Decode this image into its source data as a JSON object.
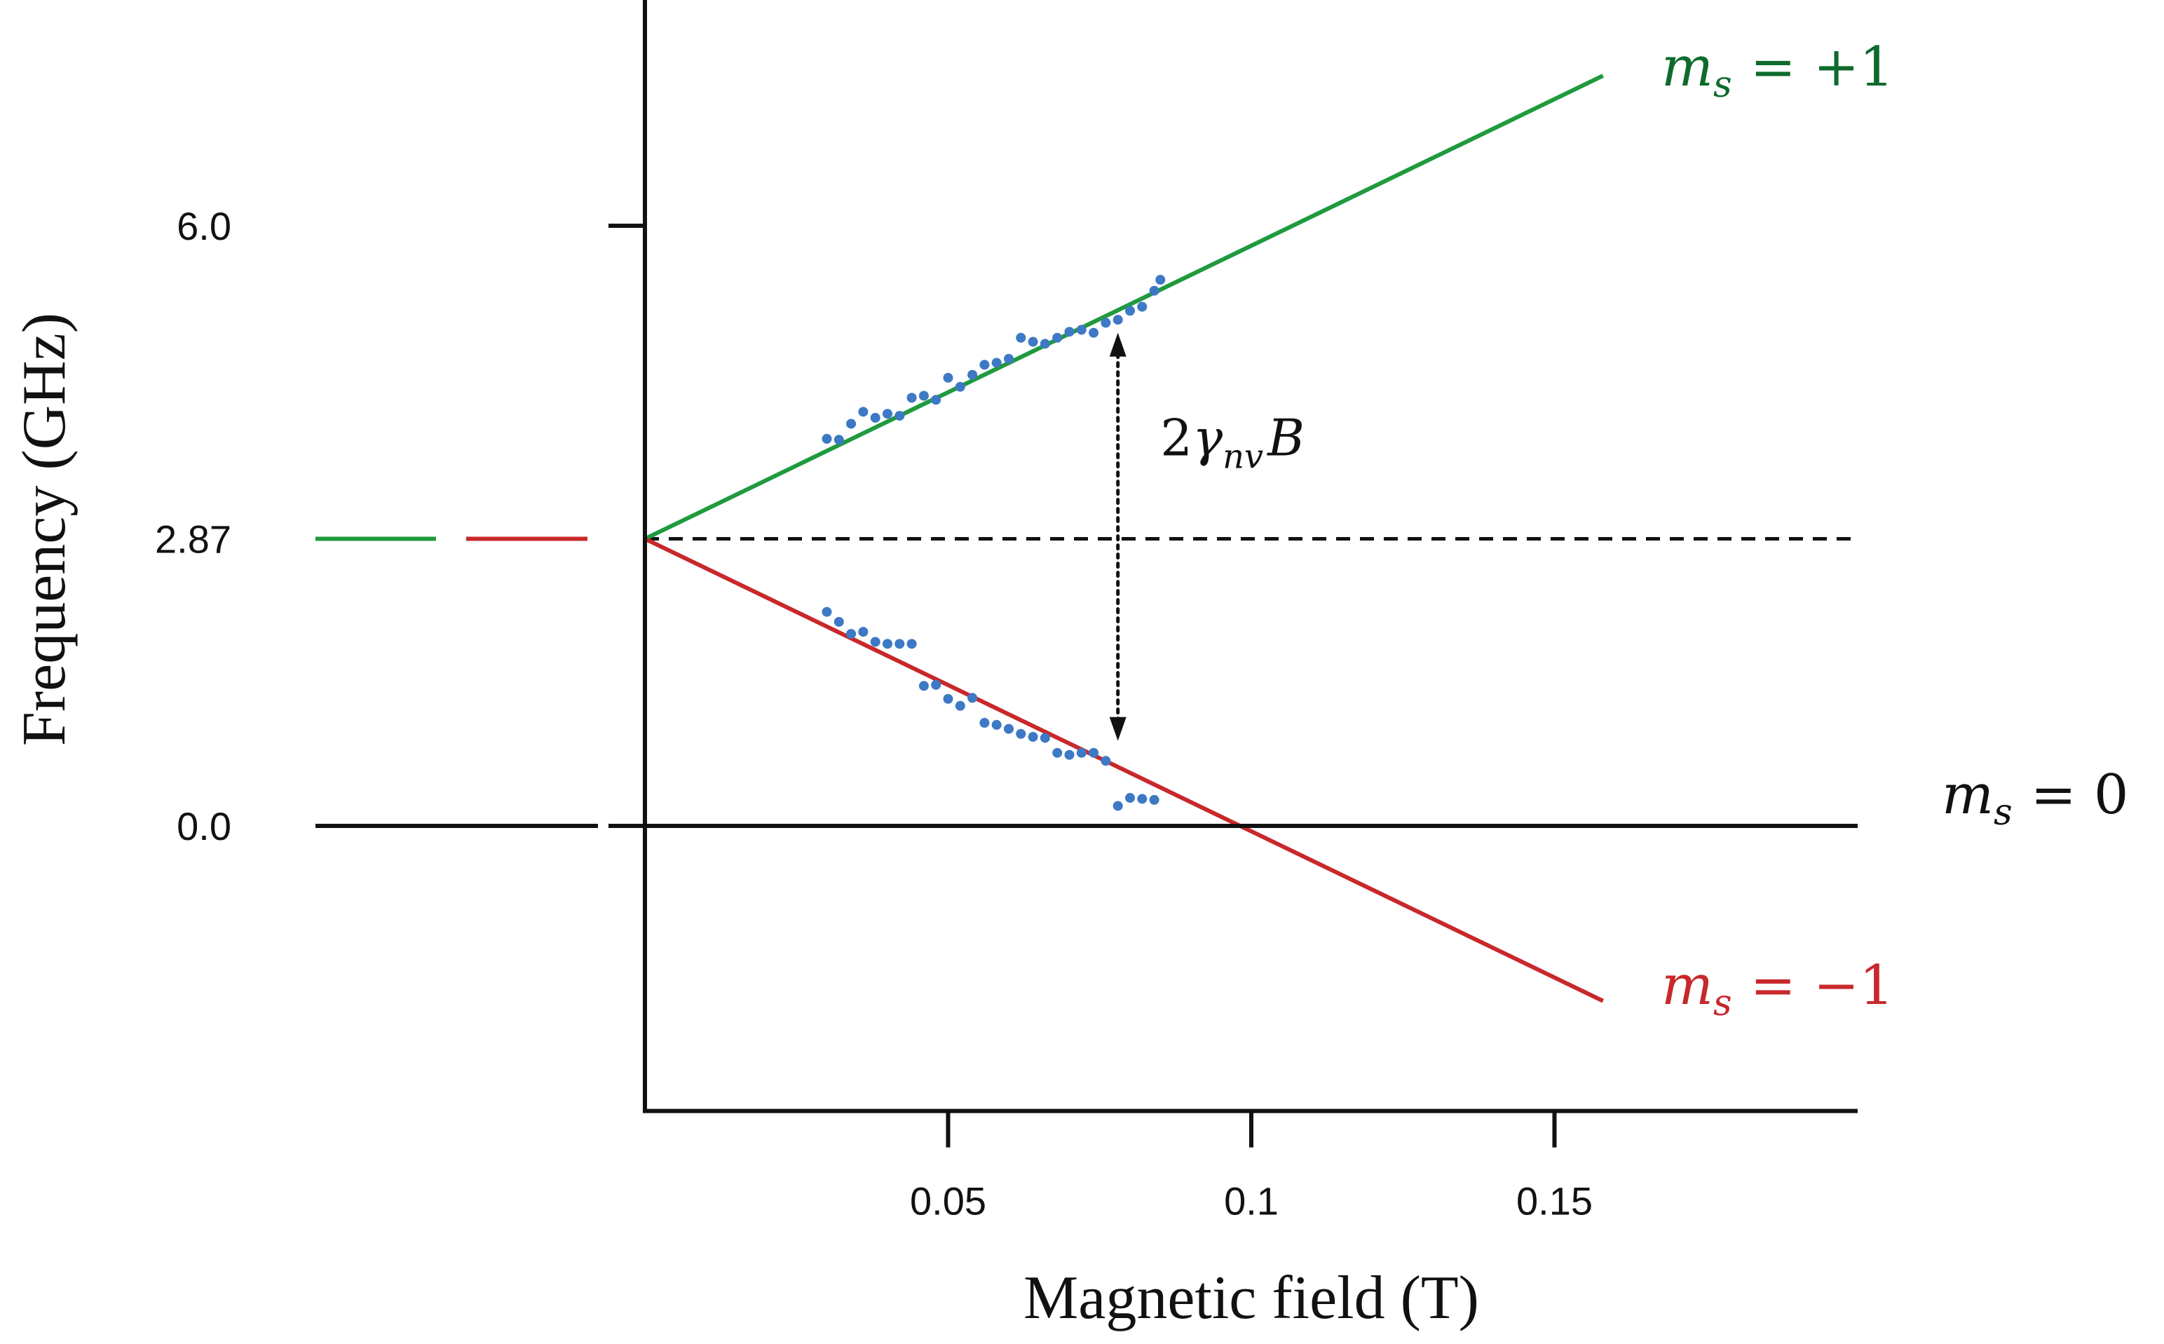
{
  "chart_data": {
    "type": "line",
    "xlabel": "Magnetic field   (T)",
    "ylabel": "Frequency (GHz)",
    "x_ticks": [
      "0.05",
      "0.1",
      "0.15"
    ],
    "x_tick_values": [
      0.05,
      0.1,
      0.15
    ],
    "y_ticks": [
      "6.0",
      "2.87",
      "0.0"
    ],
    "y_tick_values": [
      6.0,
      2.87,
      0.0
    ],
    "xlim": [
      0,
      0.2
    ],
    "ylim": [
      -2.85,
      8.6
    ],
    "grid": false,
    "zero_field_splitting": 2.87,
    "series": [
      {
        "name": "m_s = +1",
        "label": {
          "sub": "s",
          "value": "+1"
        },
        "color": "#1f9a3e",
        "label_color": "#0e6b2c",
        "x": [
          0,
          0.158
        ],
        "y": [
          2.87,
          7.5
        ]
      },
      {
        "name": "m_s = −1",
        "label": {
          "sub": "s",
          "value": "−1"
        },
        "color": "#c8282c",
        "label_color": "#c8282c",
        "x": [
          0,
          0.158
        ],
        "y": [
          2.87,
          -1.75
        ]
      },
      {
        "name": "m_s = 0",
        "label": {
          "sub": "s",
          "value": "0"
        },
        "color": "#111111",
        "label_color": "#111111",
        "x": [
          0,
          0.2
        ],
        "y": [
          0,
          0
        ]
      }
    ],
    "reference_line": {
      "y": 2.87,
      "style": "dashed",
      "color": "#111111"
    },
    "left_dashes": [
      {
        "y": 2.87,
        "color": "#1f9a3e"
      },
      {
        "y": 2.87,
        "color": "#c8282c"
      },
      {
        "y": 0,
        "color": "#111111"
      }
    ],
    "scatter": {
      "color": "#3d79c4",
      "upper": {
        "x": [
          0.03,
          0.032,
          0.034,
          0.036,
          0.038,
          0.04,
          0.042,
          0.044,
          0.046,
          0.048,
          0.05,
          0.052,
          0.054,
          0.056,
          0.058,
          0.06,
          0.062,
          0.064,
          0.066,
          0.068,
          0.07,
          0.072,
          0.074,
          0.076,
          0.078,
          0.08,
          0.082,
          0.084,
          0.085
        ],
        "y": [
          3.87,
          3.86,
          4.02,
          4.14,
          4.08,
          4.12,
          4.1,
          4.28,
          4.3,
          4.26,
          4.48,
          4.39,
          4.51,
          4.61,
          4.63,
          4.67,
          4.88,
          4.84,
          4.82,
          4.88,
          4.94,
          4.96,
          4.93,
          5.03,
          5.06,
          5.15,
          5.19,
          5.35,
          5.46
        ]
      },
      "lower": {
        "x": [
          0.03,
          0.032,
          0.034,
          0.036,
          0.038,
          0.04,
          0.042,
          0.044,
          0.046,
          0.048,
          0.05,
          0.052,
          0.054,
          0.056,
          0.058,
          0.06,
          0.062,
          0.064,
          0.066,
          0.068,
          0.07,
          0.072,
          0.074,
          0.076,
          0.078,
          0.08,
          0.082,
          0.084
        ],
        "y": [
          2.14,
          2.04,
          1.92,
          1.94,
          1.84,
          1.82,
          1.82,
          1.82,
          1.4,
          1.41,
          1.27,
          1.2,
          1.28,
          1.03,
          1.01,
          0.97,
          0.92,
          0.89,
          0.88,
          0.73,
          0.71,
          0.73,
          0.73,
          0.65,
          0.2,
          0.28,
          0.27,
          0.26
        ]
      }
    },
    "annotation": {
      "type": "double-arrow",
      "x": 0.078,
      "y_from": 0.85,
      "y_to": 4.93,
      "style": "dotted",
      "text_coef": "2",
      "text_gamma": "γ",
      "text_sub": "nv",
      "text_var": "B",
      "text_anchor": [
        0.085,
        3.9
      ]
    }
  }
}
